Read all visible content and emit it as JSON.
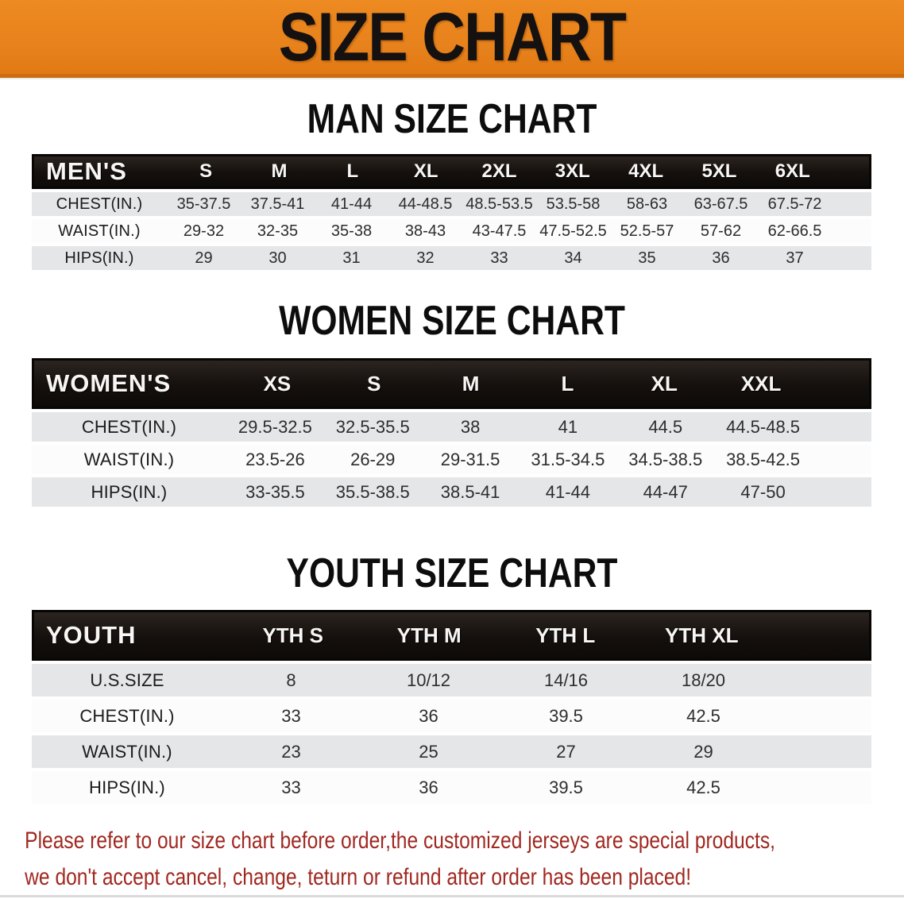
{
  "banner": {
    "title": "SIZE CHART"
  },
  "sections": {
    "men": {
      "title": "MAN SIZE CHART",
      "table": {
        "header_label": "MEN'S",
        "columns": [
          "S",
          "M",
          "L",
          "XL",
          "2XL",
          "3XL",
          "4XL",
          "5XL",
          "6XL"
        ],
        "rows": [
          {
            "label": "CHEST(IN.)",
            "values": [
              "35-37.5",
              "37.5-41",
              "41-44",
              "44-48.5",
              "48.5-53.5",
              "53.5-58",
              "58-63",
              "63-67.5",
              "67.5-72"
            ]
          },
          {
            "label": "WAIST(IN.)",
            "values": [
              "29-32",
              "32-35",
              "35-38",
              "38-43",
              "43-47.5",
              "47.5-52.5",
              "52.5-57",
              "57-62",
              "62-66.5"
            ]
          },
          {
            "label": "HIPS(IN.)",
            "values": [
              "29",
              "30",
              "31",
              "32",
              "33",
              "34",
              "35",
              "36",
              "37"
            ]
          }
        ]
      }
    },
    "women": {
      "title": "WOMEN SIZE CHART",
      "table": {
        "header_label": "WOMEN'S",
        "columns": [
          "XS",
          "S",
          "M",
          "L",
          "XL",
          "XXL"
        ],
        "rows": [
          {
            "label": "CHEST(IN.)",
            "values": [
              "29.5-32.5",
              "32.5-35.5",
              "38",
              "41",
              "44.5",
              "44.5-48.5"
            ]
          },
          {
            "label": "WAIST(IN.)",
            "values": [
              "23.5-26",
              "26-29",
              "29-31.5",
              "31.5-34.5",
              "34.5-38.5",
              "38.5-42.5"
            ]
          },
          {
            "label": "HIPS(IN.)",
            "values": [
              "33-35.5",
              "35.5-38.5",
              "38.5-41",
              "41-44",
              "44-47",
              "47-50"
            ]
          }
        ]
      }
    },
    "youth": {
      "title": "YOUTH SIZE CHART",
      "table": {
        "header_label": "YOUTH",
        "columns": [
          "YTH S",
          "YTH M",
          "YTH L",
          "YTH XL"
        ],
        "rows": [
          {
            "label": "U.S.SIZE",
            "values": [
              "8",
              "10/12",
              "14/16",
              "18/20"
            ]
          },
          {
            "label": "CHEST(IN.)",
            "values": [
              "33",
              "36",
              "39.5",
              "42.5"
            ]
          },
          {
            "label": "WAIST(IN.)",
            "values": [
              "23",
              "25",
              "27",
              "29"
            ]
          },
          {
            "label": "HIPS(IN.)",
            "values": [
              "33",
              "36",
              "39.5",
              "42.5"
            ]
          }
        ]
      }
    }
  },
  "disclaimer": {
    "line1": "Please refer to our size chart before order,the customized jerseys are special products,",
    "line2": "we don't accept cancel, change, teturn or refund after order has been placed!"
  },
  "colors": {
    "banner_orange": "#e8821c",
    "header_black": "#15100d",
    "row_gray": "#e4e6e8",
    "row_white": "#fcfcfd",
    "disclaimer_red": "#a02820"
  }
}
